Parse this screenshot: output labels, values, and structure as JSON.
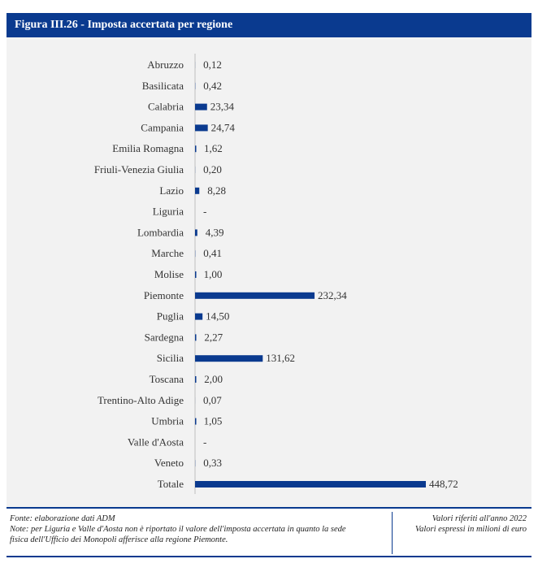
{
  "header": {
    "title": "Figura III.26 - Imposta accertata per regione"
  },
  "chart_data": {
    "type": "bar",
    "orientation": "horizontal",
    "categories": [
      "Abruzzo",
      "Basilicata",
      "Calabria",
      "Campania",
      "Emilia Romagna",
      "Friuli-Venezia Giulia",
      "Lazio",
      "Liguria",
      "Lombardia",
      "Marche",
      "Molise",
      "Piemonte",
      "Puglia",
      "Sardegna",
      "Sicilia",
      "Toscana",
      "Trentino-Alto Adige",
      "Umbria",
      "Valle d'Aosta",
      "Veneto",
      "Totale"
    ],
    "values": [
      0.12,
      0.42,
      23.34,
      24.74,
      1.62,
      0.2,
      8.28,
      null,
      4.39,
      0.41,
      1.0,
      232.34,
      14.5,
      2.27,
      131.62,
      2.0,
      0.07,
      1.05,
      null,
      0.33,
      448.72
    ],
    "labels": [
      "0,12",
      "0,42",
      "23,34",
      "24,74",
      "1,62",
      "0,20",
      "8,28",
      "-",
      "4,39",
      "0,41",
      "1,00",
      "232,34",
      "14,50",
      "2,27",
      "131,62",
      "2,00",
      "0,07",
      "1,05",
      "-",
      "0,33",
      "448,72"
    ],
    "xlim": [
      0,
      448.72
    ],
    "grid": false,
    "legend": "none",
    "colors": {
      "bar": "#0a3a8f",
      "axis": "#bfbfbf",
      "text": "#333333"
    }
  },
  "footer": {
    "source": "Fonte: elaborazione dati ADM",
    "note_line1": "Note: per Liguria e Valle d'Aosta non è riportato il valore dell'imposta accertata in quanto la sede",
    "note_line2": "fisica dell'Ufficio dei Monopoli afferisce alla regione Piemonte.",
    "ref_year": "Valori riferiti all'anno 2022",
    "units": "Valori espressi in milioni di euro"
  },
  "theme": {
    "accent": "#0a3a8f",
    "panel_bg": "#f2f2f2"
  }
}
